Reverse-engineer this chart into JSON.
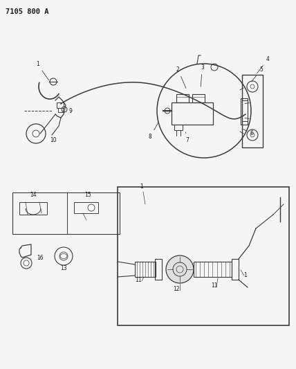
{
  "title": "7105 800 A",
  "bg_color": "#f5f5f5",
  "line_color": "#3a3a3a",
  "text_color": "#1a1a1a",
  "fig_width": 4.28,
  "fig_height": 5.33,
  "dpi": 100,
  "label_fontsize": 5.5,
  "title_fontsize": 7.5
}
